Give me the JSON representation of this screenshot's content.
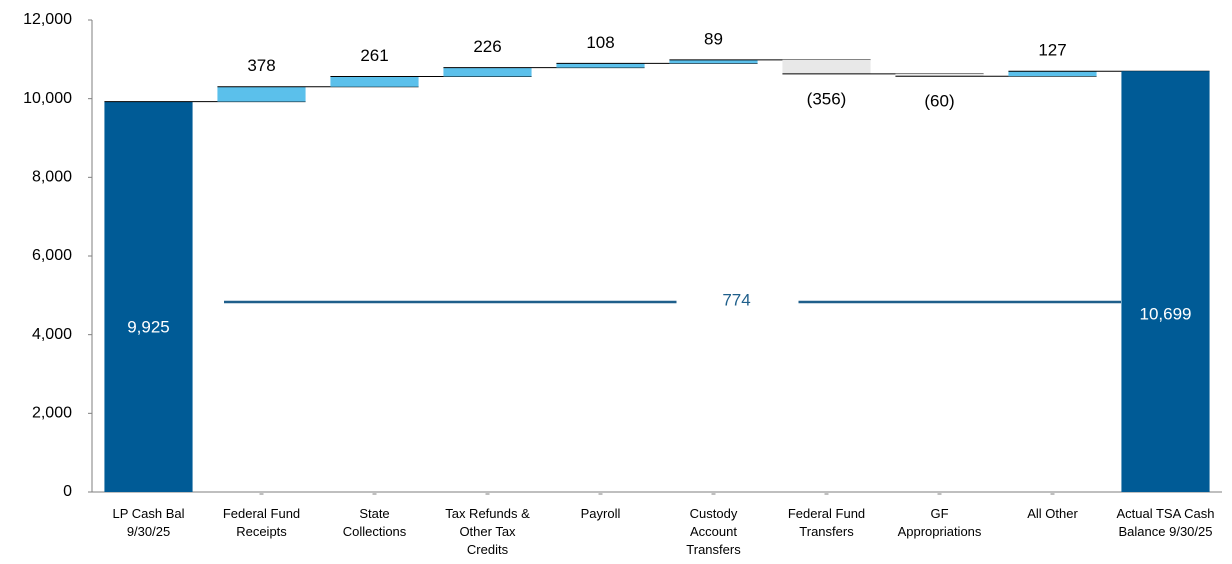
{
  "chart_data": {
    "type": "waterfall",
    "categories": [
      [
        "LP Cash Bal",
        "9/30/25"
      ],
      [
        "Federal Fund",
        "Receipts"
      ],
      [
        "State",
        "Collections"
      ],
      [
        "Tax Refunds &",
        "Other Tax",
        "Credits"
      ],
      [
        "Payroll"
      ],
      [
        "Custody",
        "Account",
        "Transfers"
      ],
      [
        "Federal Fund",
        "Transfers"
      ],
      [
        "GF",
        "Appropriations"
      ],
      [
        "All Other"
      ],
      [
        "Actual TSA Cash",
        "Balance 9/30/25"
      ]
    ],
    "values": [
      9925,
      378,
      261,
      226,
      108,
      89,
      -356,
      -60,
      127,
      10699
    ],
    "value_labels": [
      "9,925",
      "378",
      "261",
      "226",
      "108",
      "89",
      "(356)",
      "(60)",
      "127",
      "10,699"
    ],
    "total_indices": [
      0,
      9
    ],
    "colors": {
      "total": "#005b96",
      "increase": "#5bc0eb",
      "decrease": "#e8e8e8"
    },
    "annotation": 774,
    "ylim": [
      0,
      12000
    ],
    "yticks": [
      0,
      {
        "value": 2000,
        "label": "2,000"
      },
      {
        "value": 4000,
        "label": "4,000"
      },
      {
        "value": 6000,
        "label": "6,000"
      },
      {
        "value": 8000,
        "label": "8,000"
      },
      {
        "value": 10000,
        "label": "10,000"
      },
      {
        "value": 12000,
        "label": "12,000"
      }
    ]
  }
}
